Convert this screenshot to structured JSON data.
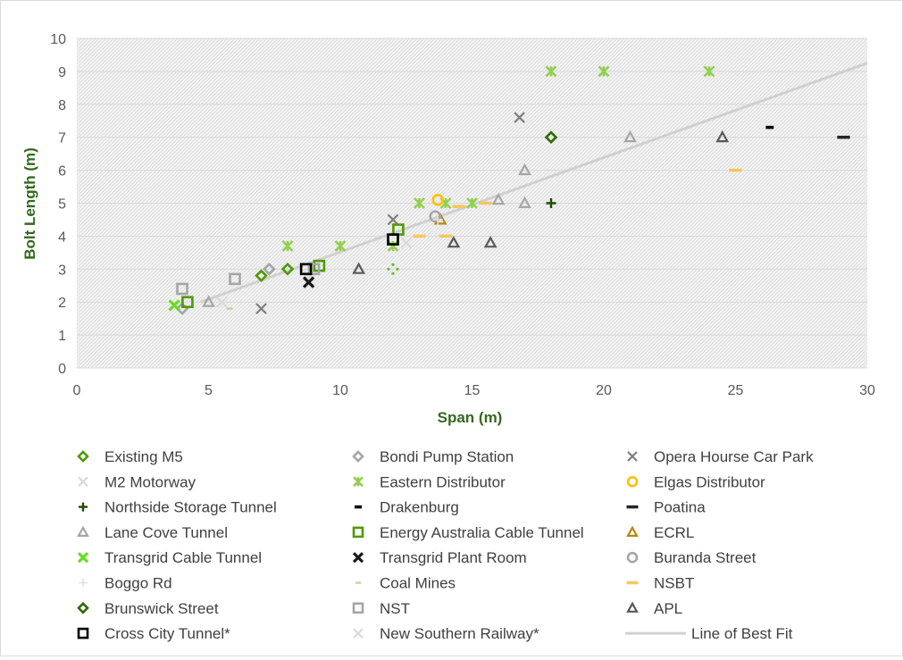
{
  "chart_data": {
    "type": "scatter",
    "title": "",
    "xlabel": "Span (m)",
    "ylabel": "Bolt Length (m)",
    "xlim": [
      0,
      30
    ],
    "ylim": [
      0,
      10
    ],
    "x_ticks": [
      "0",
      "5",
      "10",
      "15",
      "20",
      "25",
      "30"
    ],
    "y_ticks": [
      "0",
      "1",
      "2",
      "3",
      "4",
      "5",
      "6",
      "7",
      "8",
      "9",
      "10"
    ],
    "grid": "horizontal",
    "plot_background": "light diagonal hatch",
    "legend_position": "bottom",
    "series": [
      {
        "name": "Existing M5",
        "marker": "diamond-open",
        "color": "#4e9a06",
        "points": [
          [
            7,
            2.8
          ],
          [
            8,
            3.0
          ]
        ]
      },
      {
        "name": "Bondi Pump Station",
        "marker": "diamond-open",
        "color": "#a6a6a6",
        "points": [
          [
            4,
            1.8
          ],
          [
            7.3,
            3.0
          ]
        ]
      },
      {
        "name": "Opera Hourse Car Park",
        "marker": "x",
        "color": "#7f7f7f",
        "points": [
          [
            7,
            1.8
          ],
          [
            12,
            4.5
          ],
          [
            16.8,
            7.6
          ]
        ]
      },
      {
        "name": "M2 Motorway",
        "marker": "x",
        "color": "#d9d9d9",
        "points": [
          [
            5.5,
            2.0
          ],
          [
            8.8,
            2.8
          ]
        ]
      },
      {
        "name": "Eastern Distributor",
        "marker": "asterisk",
        "color": "#92d050",
        "points": [
          [
            8,
            3.7
          ],
          [
            10,
            3.7
          ],
          [
            12,
            3.7
          ],
          [
            13,
            5.0
          ],
          [
            14,
            5.0
          ],
          [
            15,
            5.0
          ],
          [
            18,
            9.0
          ],
          [
            20,
            9.0
          ],
          [
            24,
            9.0
          ]
        ]
      },
      {
        "name": "Elgas Distributor",
        "marker": "circle-open",
        "color": "#ffc000",
        "points": [
          [
            13.7,
            5.1
          ]
        ]
      },
      {
        "name": "Northside Storage Tunnel",
        "marker": "plus",
        "color": "#1e4d00",
        "points": [
          [
            18,
            5.0
          ]
        ]
      },
      {
        "name": "Drakenburg",
        "marker": "dash",
        "color": "#000000",
        "points": [
          [
            26.3,
            7.3
          ]
        ]
      },
      {
        "name": "Poatina",
        "marker": "dash-long",
        "color": "#262626",
        "points": [
          [
            29.1,
            7.0
          ]
        ]
      },
      {
        "name": "Lane Cove Tunnel",
        "marker": "triangle-open",
        "color": "#a6a6a6",
        "points": [
          [
            5,
            2.0
          ],
          [
            16,
            5.1
          ],
          [
            17,
            5.0
          ],
          [
            17,
            6.0
          ],
          [
            21,
            7.0
          ]
        ]
      },
      {
        "name": "Energy Australia Cable Tunnel",
        "marker": "square-open",
        "color": "#4e9a06",
        "points": [
          [
            4.2,
            2.0
          ],
          [
            9.2,
            3.1
          ],
          [
            12.2,
            4.2
          ]
        ]
      },
      {
        "name": "ECRL",
        "marker": "triangle-open",
        "color": "#b8860b",
        "points": [
          [
            13.8,
            4.5
          ]
        ]
      },
      {
        "name": "Transgrid Cable Tunnel",
        "marker": "x-bold",
        "color": "#66dd22",
        "points": [
          [
            3.7,
            1.9
          ]
        ]
      },
      {
        "name": "Transgrid Plant Room",
        "marker": "x-bold",
        "color": "#1a1a1a",
        "points": [
          [
            8.8,
            2.6
          ]
        ]
      },
      {
        "name": "Buranda Street",
        "marker": "circle-open",
        "color": "#a6a6a6",
        "points": [
          [
            13.6,
            4.6
          ]
        ]
      },
      {
        "name": "Boggo Rd",
        "marker": "plus-thin",
        "color": "#e0e0e0",
        "points": [
          [
            13.7,
            4.5
          ]
        ]
      },
      {
        "name": "Coal Mines",
        "marker": "dash-small",
        "color": "#c3d69b",
        "points": [
          [
            5.8,
            1.8
          ]
        ]
      },
      {
        "name": "NSBT",
        "marker": "dash-long",
        "color": "#f5c85a",
        "points": [
          [
            13,
            4.0
          ],
          [
            14,
            4.0
          ],
          [
            14.5,
            4.9
          ],
          [
            15.5,
            5.0
          ],
          [
            25,
            6.0
          ]
        ]
      },
      {
        "name": "Brunswick Street",
        "marker": "diamond-open",
        "color": "#2e6b00",
        "points": [
          [
            18,
            7.0
          ]
        ]
      },
      {
        "name": "NST",
        "marker": "square-open",
        "color": "#a6a6a6",
        "points": [
          [
            4,
            2.4
          ],
          [
            6,
            2.7
          ],
          [
            9,
            3.0
          ]
        ]
      },
      {
        "name": "APL",
        "marker": "triangle-open",
        "color": "#595959",
        "points": [
          [
            10.7,
            3.0
          ],
          [
            14.3,
            3.8
          ],
          [
            15.7,
            3.8
          ],
          [
            24.5,
            7.0
          ]
        ]
      },
      {
        "name": "Cross City Tunnel*",
        "marker": "square-open",
        "color": "#000000",
        "points": [
          [
            8.7,
            3.0
          ],
          [
            12,
            3.9
          ]
        ]
      },
      {
        "name": "New Southern Railway*",
        "marker": "x",
        "color": "#d9d9d9",
        "points": [
          [
            12.5,
            3.8
          ]
        ]
      },
      {
        "name": "Line of Best Fit",
        "marker": "line",
        "color": "#d0d0d0",
        "points": [
          [
            4.7,
            2.0
          ],
          [
            30,
            9.25
          ]
        ]
      }
    ],
    "extra_marks": [
      {
        "series": "Existing M5",
        "marker": "dotted-diamond",
        "color": "#66bb22",
        "points": [
          [
            12,
            3.0
          ]
        ]
      }
    ]
  }
}
